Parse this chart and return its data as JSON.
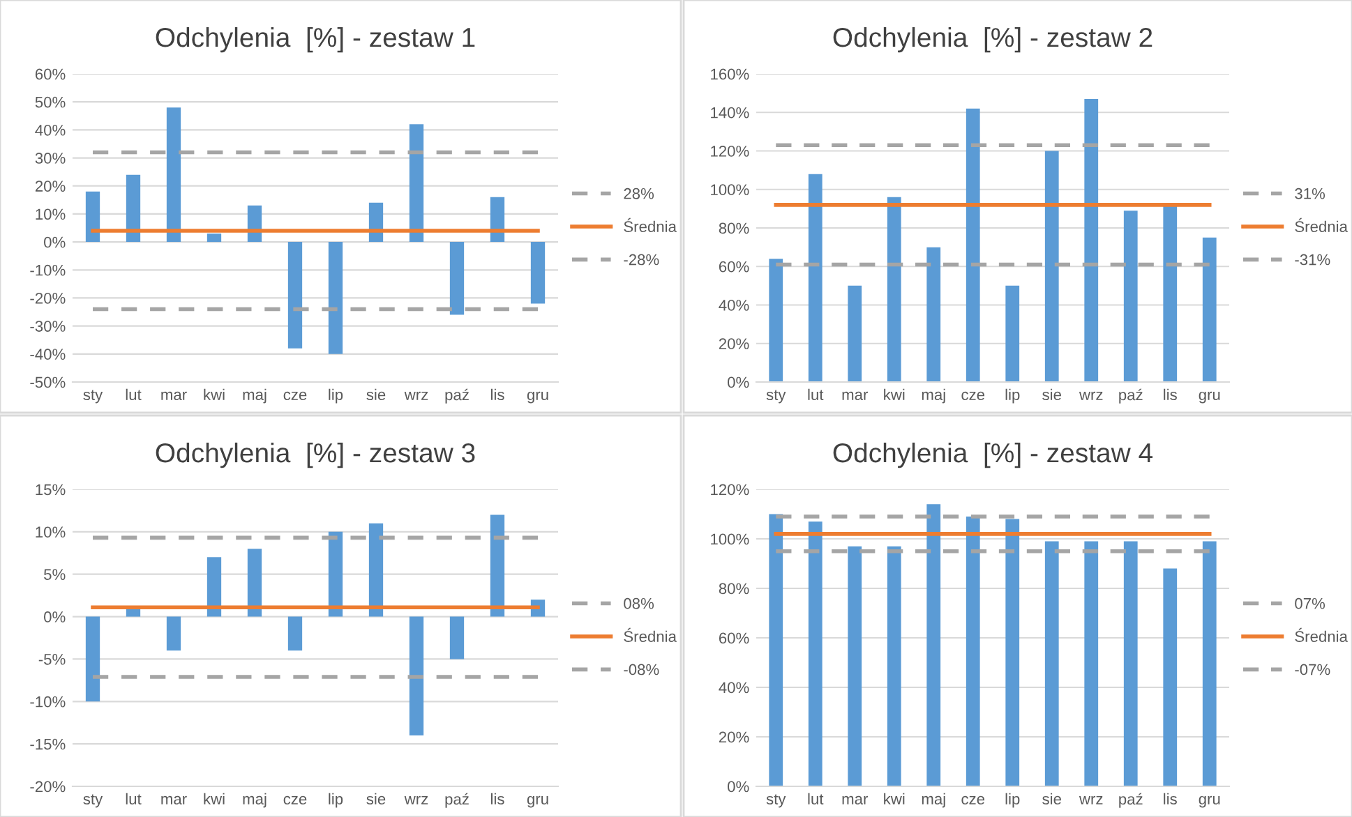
{
  "chart_data": [
    {
      "type": "bar",
      "title": "Odchylenia  [%] - zestaw 1",
      "categories": [
        "sty",
        "lut",
        "mar",
        "kwi",
        "maj",
        "cze",
        "lip",
        "sie",
        "wrz",
        "paź",
        "lis",
        "gru"
      ],
      "ylim": [
        -50,
        60
      ],
      "yticks": [
        {
          "value": -50,
          "label": "-50%"
        },
        {
          "value": -40,
          "label": "-40%"
        },
        {
          "value": -30,
          "label": "-30%"
        },
        {
          "value": -20,
          "label": "-20%"
        },
        {
          "value": -10,
          "label": "-10%"
        },
        {
          "value": 0,
          "label": "0%"
        },
        {
          "value": 10,
          "label": "10%"
        },
        {
          "value": 20,
          "label": "20%"
        },
        {
          "value": 30,
          "label": "30%"
        },
        {
          "value": 40,
          "label": "40%"
        },
        {
          "value": 50,
          "label": "50%"
        },
        {
          "value": 60,
          "label": "60%"
        }
      ],
      "grid": "y",
      "legend": "right",
      "series": [
        {
          "color": "#5b9bd5",
          "values": [
            18,
            24,
            48,
            3,
            13,
            -38,
            -40,
            14,
            42,
            -26,
            16,
            -22
          ]
        },
        {
          "type": "line",
          "name": "28%",
          "color": "#a5a5a5",
          "line_style": "dashed",
          "values": [
            32,
            32,
            32,
            32,
            32,
            32,
            32,
            32,
            32,
            32,
            32,
            32
          ]
        },
        {
          "type": "line",
          "name": "Średnia",
          "color": "#ed7d31",
          "line_style": "solid",
          "values": [
            4,
            4,
            4,
            4,
            4,
            4,
            4,
            4,
            4,
            4,
            4,
            4
          ]
        },
        {
          "type": "line",
          "name": "-28%",
          "color": "#a5a5a5",
          "line_style": "dashed",
          "values": [
            -24,
            -24,
            -24,
            -24,
            -24,
            -24,
            -24,
            -24,
            -24,
            -24,
            -24,
            -24
          ]
        }
      ]
    },
    {
      "type": "bar",
      "title": "Odchylenia  [%] - zestaw 2",
      "categories": [
        "sty",
        "lut",
        "mar",
        "kwi",
        "maj",
        "cze",
        "lip",
        "sie",
        "wrz",
        "paź",
        "lis",
        "gru"
      ],
      "ylim": [
        0,
        160
      ],
      "yticks": [
        {
          "value": 0,
          "label": "0%"
        },
        {
          "value": 20,
          "label": "20%"
        },
        {
          "value": 40,
          "label": "40%"
        },
        {
          "value": 60,
          "label": "60%"
        },
        {
          "value": 80,
          "label": "80%"
        },
        {
          "value": 100,
          "label": "100%"
        },
        {
          "value": 120,
          "label": "120%"
        },
        {
          "value": 140,
          "label": "140%"
        },
        {
          "value": 160,
          "label": "160%"
        }
      ],
      "grid": "y",
      "legend": "right",
      "series": [
        {
          "color": "#5b9bd5",
          "values": [
            64,
            108,
            50,
            96,
            70,
            142,
            50,
            120,
            147,
            89,
            92,
            75
          ]
        },
        {
          "type": "line",
          "name": "31%",
          "color": "#a5a5a5",
          "line_style": "dashed",
          "values": [
            123,
            123,
            123,
            123,
            123,
            123,
            123,
            123,
            123,
            123,
            123,
            123
          ]
        },
        {
          "type": "line",
          "name": "Średnia",
          "color": "#ed7d31",
          "line_style": "solid",
          "values": [
            92,
            92,
            92,
            92,
            92,
            92,
            92,
            92,
            92,
            92,
            92,
            92
          ]
        },
        {
          "type": "line",
          "name": "-31%",
          "color": "#a5a5a5",
          "line_style": "dashed",
          "values": [
            61,
            61,
            61,
            61,
            61,
            61,
            61,
            61,
            61,
            61,
            61,
            61
          ]
        }
      ]
    },
    {
      "type": "bar",
      "title": "Odchylenia  [%] - zestaw 3",
      "categories": [
        "sty",
        "lut",
        "mar",
        "kwi",
        "maj",
        "cze",
        "lip",
        "sie",
        "wrz",
        "paź",
        "lis",
        "gru"
      ],
      "ylim": [
        -20,
        15
      ],
      "yticks": [
        {
          "value": -20,
          "label": "-20%"
        },
        {
          "value": -15,
          "label": "-15%"
        },
        {
          "value": -10,
          "label": "-10%"
        },
        {
          "value": -5,
          "label": "-5%"
        },
        {
          "value": 0,
          "label": "0%"
        },
        {
          "value": 5,
          "label": "5%"
        },
        {
          "value": 10,
          "label": "10%"
        },
        {
          "value": 15,
          "label": "15%"
        }
      ],
      "grid": "y",
      "legend": "right",
      "series": [
        {
          "color": "#5b9bd5",
          "values": [
            -10,
            1,
            -4,
            7,
            8,
            -4,
            10,
            11,
            -14,
            -5,
            12,
            2
          ]
        },
        {
          "type": "line",
          "name": "08%",
          "color": "#a5a5a5",
          "line_style": "dashed",
          "values": [
            9.3,
            9.3,
            9.3,
            9.3,
            9.3,
            9.3,
            9.3,
            9.3,
            9.3,
            9.3,
            9.3,
            9.3
          ]
        },
        {
          "type": "line",
          "name": "Średnia",
          "color": "#ed7d31",
          "line_style": "solid",
          "values": [
            1.1,
            1.1,
            1.1,
            1.1,
            1.1,
            1.1,
            1.1,
            1.1,
            1.1,
            1.1,
            1.1,
            1.1
          ]
        },
        {
          "type": "line",
          "name": "-08%",
          "color": "#a5a5a5",
          "line_style": "dashed",
          "values": [
            -7.1,
            -7.1,
            -7.1,
            -7.1,
            -7.1,
            -7.1,
            -7.1,
            -7.1,
            -7.1,
            -7.1,
            -7.1,
            -7.1
          ]
        }
      ]
    },
    {
      "type": "bar",
      "title": "Odchylenia  [%] - zestaw 4",
      "categories": [
        "sty",
        "lut",
        "mar",
        "kwi",
        "maj",
        "cze",
        "lip",
        "sie",
        "wrz",
        "paź",
        "lis",
        "gru"
      ],
      "ylim": [
        0,
        120
      ],
      "yticks": [
        {
          "value": 0,
          "label": "0%"
        },
        {
          "value": 20,
          "label": "20%"
        },
        {
          "value": 40,
          "label": "40%"
        },
        {
          "value": 60,
          "label": "60%"
        },
        {
          "value": 80,
          "label": "80%"
        },
        {
          "value": 100,
          "label": "100%"
        },
        {
          "value": 120,
          "label": "120%"
        }
      ],
      "grid": "y",
      "legend": "right",
      "series": [
        {
          "color": "#5b9bd5",
          "values": [
            110,
            107,
            97,
            97,
            114,
            109,
            108,
            99,
            99,
            99,
            88,
            99
          ]
        },
        {
          "type": "line",
          "name": "07%",
          "color": "#a5a5a5",
          "line_style": "dashed",
          "values": [
            109,
            109,
            109,
            109,
            109,
            109,
            109,
            109,
            109,
            109,
            109,
            109
          ]
        },
        {
          "type": "line",
          "name": "Średnia",
          "color": "#ed7d31",
          "line_style": "solid",
          "values": [
            102,
            102,
            102,
            102,
            102,
            102,
            102,
            102,
            102,
            102,
            102,
            102
          ]
        },
        {
          "type": "line",
          "name": "-07%",
          "color": "#a5a5a5",
          "line_style": "dashed",
          "values": [
            95,
            95,
            95,
            95,
            95,
            95,
            95,
            95,
            95,
            95,
            95,
            95
          ]
        }
      ]
    }
  ]
}
